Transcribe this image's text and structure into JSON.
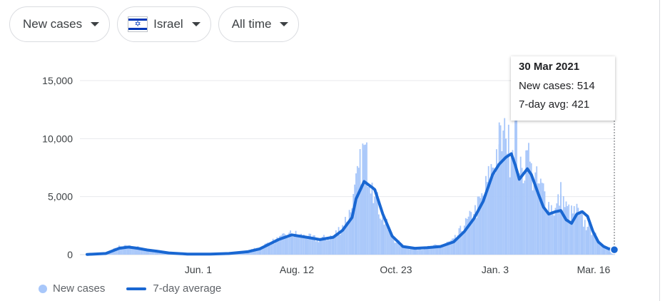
{
  "filters": {
    "metric": "New cases",
    "country": "Israel",
    "range": "All time"
  },
  "tooltip": {
    "date": "30 Mar 2021",
    "new_cases": "New cases: 514",
    "avg": "7-day avg: 421"
  },
  "legend": {
    "bars": "New cases",
    "line": "7-day average"
  },
  "colors": {
    "bars": "#a8c7fa",
    "line": "#1967d2",
    "grid": "#e8eaed"
  },
  "chart_data": {
    "type": "bar",
    "title": "",
    "xlabel": "",
    "ylabel": "",
    "ylim": [
      0,
      15000
    ],
    "yticks": [
      0,
      5000,
      10000,
      15000
    ],
    "ytick_labels": [
      "0",
      "5,000",
      "10,000",
      "15,000"
    ],
    "xtick_labels": [
      "Jun. 1",
      "Aug. 12",
      "Oct. 23",
      "Jan. 3",
      "Mar. 16"
    ],
    "grid": true,
    "legend_position": "bottom-left",
    "series": [
      {
        "name": "New cases",
        "type": "bar",
        "x": [
          "2020-03-01",
          "2020-03-15",
          "2020-03-25",
          "2020-04-01",
          "2020-04-08",
          "2020-04-15",
          "2020-04-22",
          "2020-05-01",
          "2020-05-15",
          "2020-06-01",
          "2020-06-15",
          "2020-06-29",
          "2020-07-08",
          "2020-07-15",
          "2020-07-22",
          "2020-08-01",
          "2020-08-12",
          "2020-08-22",
          "2020-09-01",
          "2020-09-08",
          "2020-09-15",
          "2020-09-18",
          "2020-09-24",
          "2020-09-30",
          "2020-10-02",
          "2020-10-08",
          "2020-10-15",
          "2020-10-23",
          "2020-11-01",
          "2020-11-10",
          "2020-11-20",
          "2020-11-30",
          "2020-12-08",
          "2020-12-15",
          "2020-12-22",
          "2020-12-29",
          "2021-01-03",
          "2021-01-08",
          "2021-01-12",
          "2021-01-15",
          "2021-01-18",
          "2021-01-20",
          "2021-01-24",
          "2021-01-27",
          "2021-02-01",
          "2021-02-05",
          "2021-02-09",
          "2021-02-14",
          "2021-02-18",
          "2021-02-22",
          "2021-02-26",
          "2021-03-02",
          "2021-03-06",
          "2021-03-10",
          "2021-03-14",
          "2021-03-18",
          "2021-03-22",
          "2021-03-26",
          "2021-03-30"
        ],
        "values": [
          20,
          150,
          650,
          700,
          600,
          400,
          300,
          200,
          50,
          50,
          100,
          300,
          600,
          1000,
          1300,
          1800,
          1500,
          1300,
          1600,
          2500,
          4000,
          5800,
          9000,
          6200,
          5000,
          3200,
          1500,
          700,
          500,
          600,
          800,
          1200,
          2500,
          3500,
          5000,
          7500,
          9500,
          10000,
          8500,
          11500,
          7000,
          6800,
          9000,
          7000,
          6000,
          5500,
          4300,
          3800,
          5200,
          4000,
          3500,
          3700,
          3000,
          2400,
          2100,
          1000,
          800,
          600,
          514
        ]
      },
      {
        "name": "7-day average",
        "type": "line",
        "x": [
          "2020-03-01",
          "2020-03-15",
          "2020-03-25",
          "2020-04-01",
          "2020-04-08",
          "2020-04-15",
          "2020-04-22",
          "2020-05-01",
          "2020-05-15",
          "2020-06-01",
          "2020-06-15",
          "2020-06-29",
          "2020-07-08",
          "2020-07-15",
          "2020-07-22",
          "2020-08-01",
          "2020-08-12",
          "2020-08-22",
          "2020-09-01",
          "2020-09-08",
          "2020-09-15",
          "2020-09-18",
          "2020-09-24",
          "2020-09-30",
          "2020-10-02",
          "2020-10-08",
          "2020-10-15",
          "2020-10-23",
          "2020-11-01",
          "2020-11-10",
          "2020-11-20",
          "2020-11-30",
          "2020-12-08",
          "2020-12-15",
          "2020-12-22",
          "2020-12-29",
          "2021-01-03",
          "2021-01-08",
          "2021-01-12",
          "2021-01-15",
          "2021-01-18",
          "2021-01-20",
          "2021-01-24",
          "2021-01-27",
          "2021-02-01",
          "2021-02-05",
          "2021-02-09",
          "2021-02-14",
          "2021-02-18",
          "2021-02-22",
          "2021-02-26",
          "2021-03-02",
          "2021-03-06",
          "2021-03-10",
          "2021-03-14",
          "2021-03-18",
          "2021-03-22",
          "2021-03-26",
          "2021-03-30"
        ],
        "values": [
          20,
          100,
          550,
          650,
          550,
          400,
          300,
          150,
          50,
          40,
          100,
          250,
          500,
          900,
          1300,
          1700,
          1500,
          1300,
          1500,
          2100,
          3200,
          4800,
          6300,
          5800,
          5600,
          3500,
          1600,
          700,
          550,
          600,
          700,
          1100,
          2000,
          3100,
          4600,
          6900,
          7800,
          8400,
          8700,
          7700,
          6500,
          6800,
          7400,
          6900,
          5300,
          4100,
          3500,
          3700,
          3800,
          3000,
          2700,
          3500,
          3700,
          3300,
          2000,
          1100,
          700,
          500,
          421
        ]
      }
    ]
  }
}
